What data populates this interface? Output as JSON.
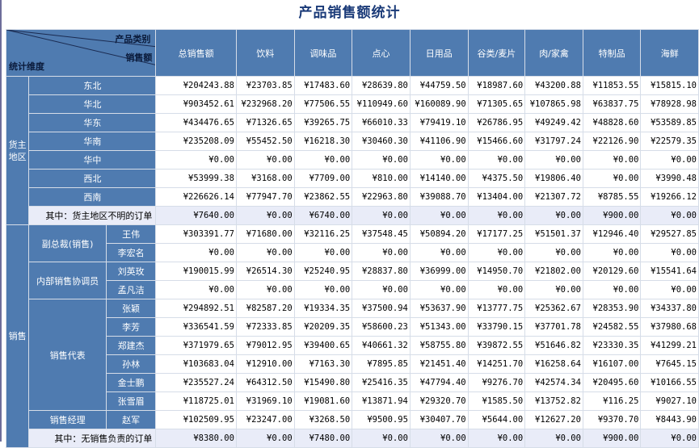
{
  "title": "产品销售额统计",
  "corner": {
    "category": "产品类别",
    "amount": "销售额",
    "dimension": "统计维度"
  },
  "columns": [
    "总销售额",
    "饮料",
    "调味品",
    "点心",
    "日用品",
    "谷类/麦片",
    "肉/家禽",
    "特制品",
    "海鲜"
  ],
  "region_group": {
    "label": "货主地区"
  },
  "regions": [
    {
      "name": "东北",
      "values": [
        "¥204243.88",
        "¥23703.85",
        "¥17483.60",
        "¥28639.80",
        "¥44759.50",
        "¥18987.60",
        "¥43200.88",
        "¥11853.55",
        "¥15815.10"
      ]
    },
    {
      "name": "华北",
      "values": [
        "¥903452.61",
        "¥232968.20",
        "¥77506.55",
        "¥110949.60",
        "¥160089.90",
        "¥71305.65",
        "¥107865.98",
        "¥63837.75",
        "¥78928.98"
      ]
    },
    {
      "name": "华东",
      "values": [
        "¥434476.65",
        "¥71326.65",
        "¥39265.75",
        "¥66010.33",
        "¥79419.10",
        "¥26786.95",
        "¥49249.42",
        "¥48828.60",
        "¥53589.85"
      ]
    },
    {
      "name": "华南",
      "values": [
        "¥235208.09",
        "¥55452.50",
        "¥16218.30",
        "¥30460.30",
        "¥41106.90",
        "¥15466.60",
        "¥31797.24",
        "¥22126.90",
        "¥22579.35"
      ]
    },
    {
      "name": "华中",
      "values": [
        "¥0.00",
        "¥0.00",
        "¥0.00",
        "¥0.00",
        "¥0.00",
        "¥0.00",
        "¥0.00",
        "¥0.00",
        "¥0.00"
      ]
    },
    {
      "name": "西北",
      "values": [
        "¥53999.38",
        "¥3168.00",
        "¥7709.00",
        "¥810.00",
        "¥14140.00",
        "¥4375.50",
        "¥19806.40",
        "¥0.00",
        "¥3990.48"
      ]
    },
    {
      "name": "西南",
      "values": [
        "¥226626.14",
        "¥77947.70",
        "¥23862.55",
        "¥22963.80",
        "¥39088.70",
        "¥13404.00",
        "¥21307.72",
        "¥8785.55",
        "¥19266.12"
      ]
    }
  ],
  "region_unknown": {
    "label": "其中：货主地区不明的订单",
    "values": [
      "¥7640.00",
      "¥0.00",
      "¥6740.00",
      "¥0.00",
      "¥0.00",
      "¥0.00",
      "¥0.00",
      "¥900.00",
      "¥0.00"
    ]
  },
  "sales_group": {
    "label": "销售"
  },
  "sales_subgroups": [
    {
      "title": "副总裁(销售)",
      "rows": [
        {
          "name": "王伟",
          "values": [
            "¥303391.77",
            "¥71680.00",
            "¥32116.25",
            "¥37548.45",
            "¥50894.20",
            "¥17177.25",
            "¥51501.37",
            "¥12946.40",
            "¥29527.85"
          ]
        },
        {
          "name": "李宏名",
          "values": [
            "¥0.00",
            "¥0.00",
            "¥0.00",
            "¥0.00",
            "¥0.00",
            "¥0.00",
            "¥0.00",
            "¥0.00",
            "¥0.00"
          ]
        }
      ]
    },
    {
      "title": "内部销售协调员",
      "rows": [
        {
          "name": "刘英玫",
          "values": [
            "¥190015.99",
            "¥26514.30",
            "¥25240.95",
            "¥28837.80",
            "¥36999.00",
            "¥14950.70",
            "¥21802.00",
            "¥20129.60",
            "¥15541.64"
          ]
        },
        {
          "name": "孟凡洁",
          "values": [
            "¥0.00",
            "¥0.00",
            "¥0.00",
            "¥0.00",
            "¥0.00",
            "¥0.00",
            "¥0.00",
            "¥0.00",
            "¥0.00"
          ]
        }
      ]
    },
    {
      "title": "销售代表",
      "rows": [
        {
          "name": "张颖",
          "values": [
            "¥294892.51",
            "¥82587.20",
            "¥19334.35",
            "¥37500.94",
            "¥53637.90",
            "¥13777.75",
            "¥25362.67",
            "¥28353.90",
            "¥34337.80"
          ]
        },
        {
          "name": "李芳",
          "values": [
            "¥336541.59",
            "¥72333.85",
            "¥20209.35",
            "¥58600.23",
            "¥51343.00",
            "¥33790.15",
            "¥37701.78",
            "¥24582.55",
            "¥37980.68"
          ]
        },
        {
          "name": "郑建杰",
          "values": [
            "¥371979.65",
            "¥79012.95",
            "¥39400.65",
            "¥40661.32",
            "¥58755.80",
            "¥39872.55",
            "¥51646.82",
            "¥23330.35",
            "¥41299.21"
          ]
        },
        {
          "name": "孙林",
          "values": [
            "¥103683.04",
            "¥12910.00",
            "¥7163.30",
            "¥7895.85",
            "¥21451.40",
            "¥14251.70",
            "¥16258.64",
            "¥16107.00",
            "¥7645.15"
          ]
        },
        {
          "name": "金士鹏",
          "values": [
            "¥235527.24",
            "¥64312.50",
            "¥15490.80",
            "¥25416.35",
            "¥47794.40",
            "¥9276.70",
            "¥42574.34",
            "¥20495.60",
            "¥10166.55"
          ]
        },
        {
          "name": "张雪眉",
          "values": [
            "¥118725.01",
            "¥31969.10",
            "¥19081.60",
            "¥13871.94",
            "¥29320.70",
            "¥1585.50",
            "¥13752.82",
            "¥116.25",
            "¥9027.10"
          ]
        }
      ]
    },
    {
      "title": "销售经理",
      "rows": [
        {
          "name": "赵军",
          "values": [
            "¥102509.95",
            "¥23247.00",
            "¥3268.50",
            "¥9500.95",
            "¥30407.70",
            "¥5644.00",
            "¥12627.20",
            "¥9370.70",
            "¥8443.90"
          ]
        }
      ]
    }
  ],
  "sales_unknown": {
    "label": "其中：无销售负责的订单",
    "values": [
      "¥8380.00",
      "¥0.00",
      "¥7480.00",
      "¥0.00",
      "¥0.00",
      "¥0.00",
      "¥0.00",
      "¥900.00",
      "¥0.00"
    ]
  },
  "colors": {
    "header_bg": "#4f7bb0",
    "title": "#1a3a78",
    "summary_bg": "#e9ecf8"
  }
}
